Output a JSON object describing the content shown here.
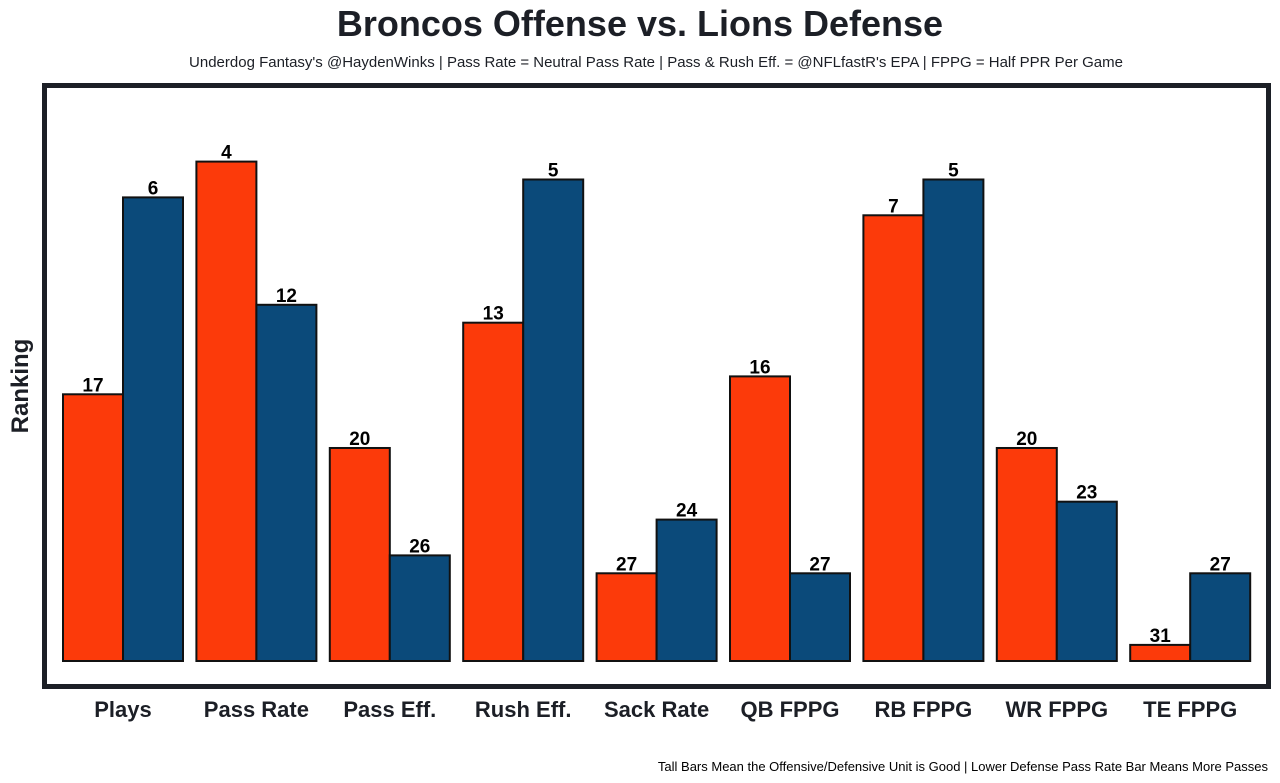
{
  "chart_data": {
    "type": "bar",
    "title": "Broncos Offense vs. Lions Defense",
    "subtitle": "Underdog Fantasy's @HaydenWinks | Pass Rate = Neutral Pass Rate | Pass & Rush Eff. = @NFLfastR's EPA | FPPG = Half PPR Per Game",
    "ylabel": "Ranking",
    "xlabel": "",
    "footer": "Tall Bars Mean the Offensive/Defensive Unit is Good | Lower Defense Pass Rate Bar Means More Passes",
    "categories": [
      "Plays",
      "Pass Rate",
      "Pass Eff.",
      "Rush Eff.",
      "Sack Rate",
      "QB FPPG",
      "RB FPPG",
      "WR FPPG",
      "TE FPPG"
    ],
    "series": [
      {
        "color": "#fc3a0a",
        "values": [
          17,
          4,
          20,
          13,
          27,
          16,
          7,
          20,
          31
        ]
      },
      {
        "color": "#0b4a7a",
        "values": [
          6,
          12,
          26,
          5,
          24,
          27,
          5,
          23,
          27
        ]
      }
    ],
    "y_axis": "ranking, inverted (rank 1 tallest)",
    "grid": false,
    "legend": "none"
  }
}
